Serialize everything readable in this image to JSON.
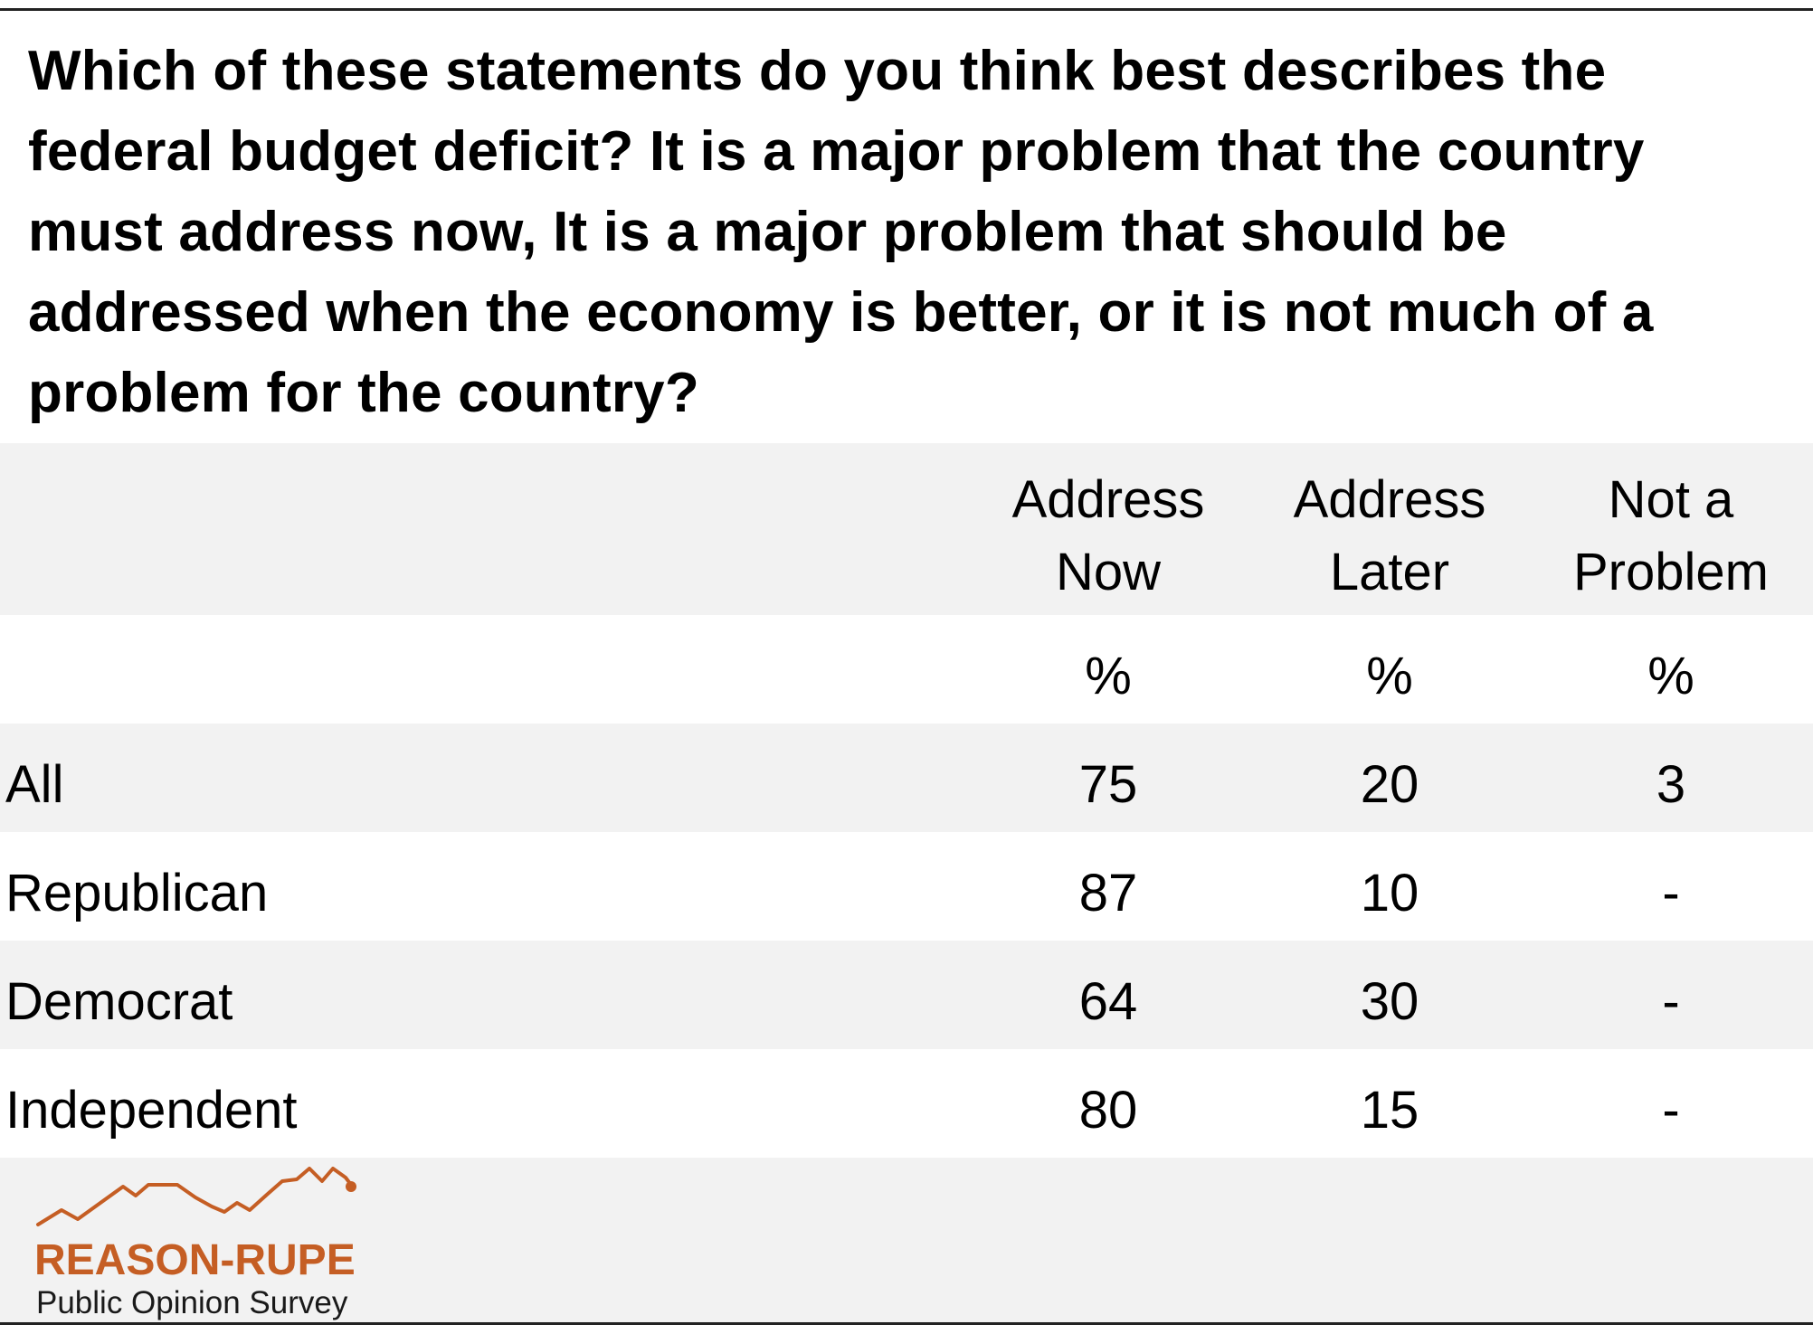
{
  "question": "Which of these statements do you think best describes the federal budget deficit? It is a major problem that the country must address now, It is a major problem that should be addressed when the economy is better, or it is not much of a problem for the country?",
  "chart_data": {
    "type": "table",
    "columns": [
      {
        "line1": "Address",
        "line2": "Now",
        "unit": "%"
      },
      {
        "line1": "Address",
        "line2": "Later",
        "unit": "%"
      },
      {
        "line1": "Not a",
        "line2": "Problem",
        "unit": "%"
      }
    ],
    "rows": [
      {
        "label": "All",
        "values": [
          "75",
          "20",
          "3"
        ]
      },
      {
        "label": "Republican",
        "values": [
          "87",
          "10",
          "-"
        ]
      },
      {
        "label": "Democrat",
        "values": [
          "64",
          "30",
          "-"
        ]
      },
      {
        "label": "Independent",
        "values": [
          "80",
          "15",
          "-"
        ]
      }
    ]
  },
  "logo": {
    "name": "REASON-RUPE",
    "subtitle": "Public Opinion Survey",
    "color": "#c55e24"
  },
  "colors": {
    "band_gray": "#f2f2f2",
    "band_white": "#ffffff"
  }
}
